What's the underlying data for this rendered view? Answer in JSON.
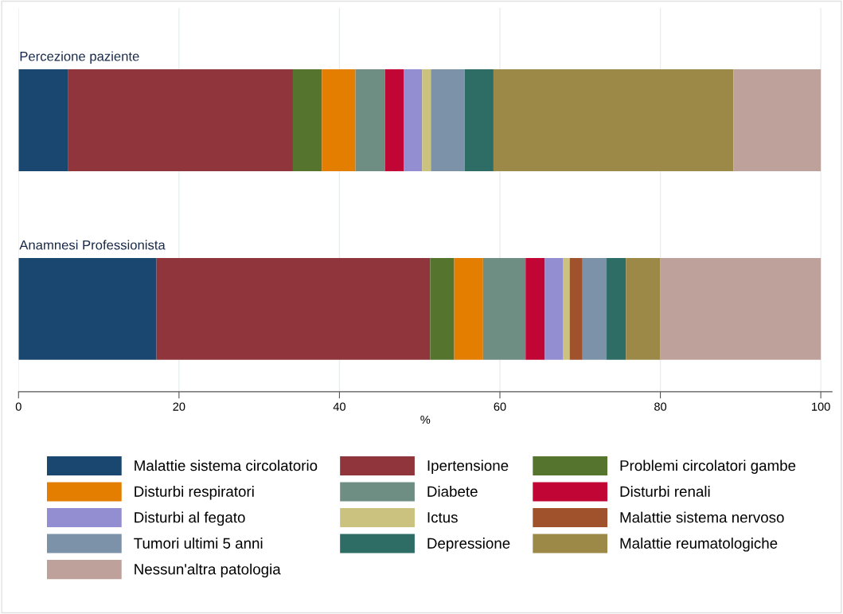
{
  "chart_data": {
    "type": "bar",
    "orientation": "horizontal",
    "stacked": true,
    "categories": [
      "Percezione paziente",
      "Anamnesi Professionista"
    ],
    "xlabel": "%",
    "xlim": [
      0,
      101.4
    ],
    "xticks": [
      0,
      20,
      40,
      60,
      80,
      100
    ],
    "grid": "x",
    "legend": "bottom",
    "tick_labels": "x",
    "series": [
      {
        "name": "Malattie sistema circolatorio",
        "color": "#1a476f",
        "values": [
          6.2,
          17.2
        ]
      },
      {
        "name": "Ipertensione",
        "color": "#90353b",
        "values": [
          28.0,
          34.1
        ]
      },
      {
        "name": "Problemi circolatori gambe",
        "color": "#55752f",
        "values": [
          3.6,
          3.0
        ]
      },
      {
        "name": "Disturbi respiratori",
        "color": "#e37e00",
        "values": [
          4.2,
          3.6
        ]
      },
      {
        "name": "Diabete",
        "color": "#6e8e84",
        "values": [
          3.7,
          5.3
        ]
      },
      {
        "name": "Disturbi renali",
        "color": "#c10534",
        "values": [
          2.3,
          2.4
        ]
      },
      {
        "name": "Disturbi al fegato",
        "color": "#938dd2",
        "values": [
          2.3,
          2.3
        ]
      },
      {
        "name": "Ictus",
        "color": "#cac27e",
        "values": [
          1.1,
          0.8
        ]
      },
      {
        "name": "Malattie sistema nervoso",
        "color": "#a0522d",
        "values": [
          0,
          1.6
        ]
      },
      {
        "name": "Tumori ultimi 5 anni",
        "color": "#7b92a8",
        "values": [
          4.2,
          3.0
        ]
      },
      {
        "name": "Depressione",
        "color": "#2d6d66",
        "values": [
          3.6,
          2.4
        ]
      },
      {
        "name": "Malattie reumatologiche",
        "color": "#9c8847",
        "values": [
          29.9,
          4.3
        ]
      },
      {
        "name": "Nessun'altra patologia",
        "color": "#bfa19c",
        "values": [
          10.9,
          20.0
        ]
      }
    ]
  }
}
